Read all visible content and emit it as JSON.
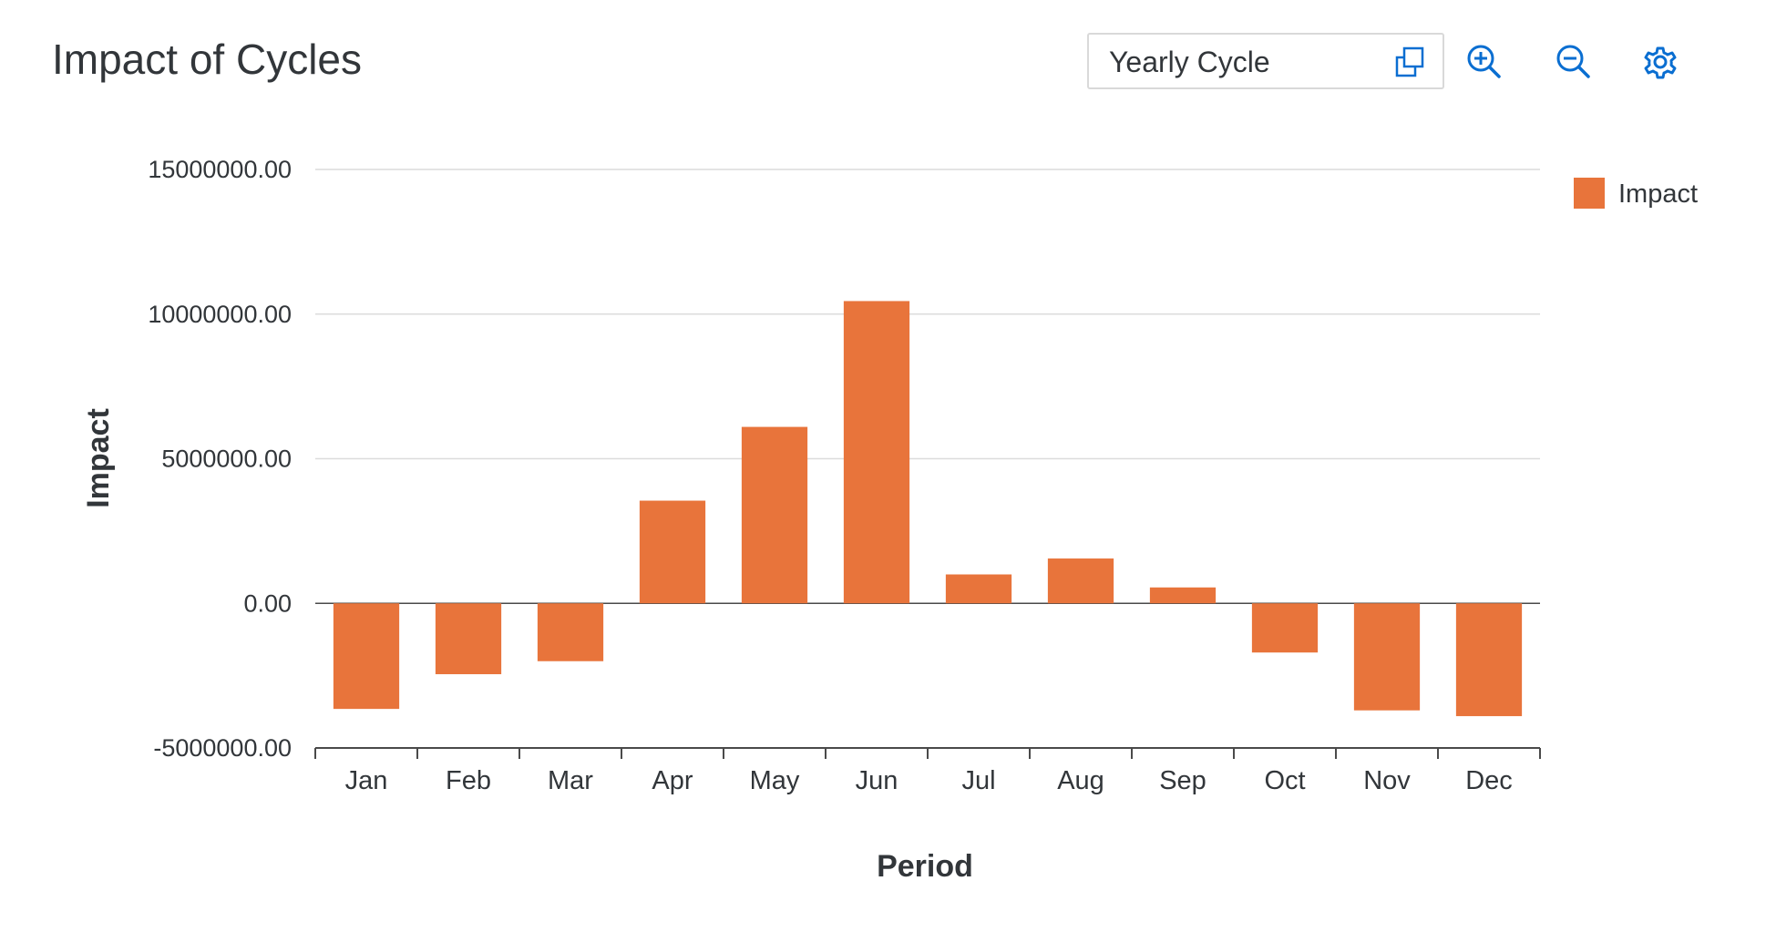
{
  "header": {
    "title": "Impact of Cycles",
    "cycle_select_value": "Yearly Cycle"
  },
  "toolbar": {
    "select_icon": "popup-icon",
    "zoom_in_icon": "zoom-in-icon",
    "zoom_out_icon": "zoom-out-icon",
    "settings_icon": "settings-icon"
  },
  "colors": {
    "bar": "#e8743b",
    "grid": "#dcdcdc",
    "axis": "#4a4a4a",
    "text": "#32363a"
  },
  "chart_data": {
    "type": "bar",
    "title": "",
    "xlabel": "Period",
    "ylabel": "Impact",
    "categories": [
      "Jan",
      "Feb",
      "Mar",
      "Apr",
      "May",
      "Jun",
      "Jul",
      "Aug",
      "Sep",
      "Oct",
      "Nov",
      "Dec"
    ],
    "series": [
      {
        "name": "Impact",
        "values": [
          -3650000,
          -2450000,
          -2000000,
          3550000,
          6100000,
          10450000,
          1000000,
          1550000,
          550000,
          -1700000,
          -3700000,
          -3900000
        ]
      }
    ],
    "ylim": [
      -5000000,
      15000000
    ],
    "yticks": [
      -5000000,
      0,
      5000000,
      10000000,
      15000000
    ],
    "ytick_labels": [
      "-5000000.00",
      "0.00",
      "5000000.00",
      "10000000.00",
      "15000000.00"
    ],
    "grid": true,
    "legend_position": "top-right"
  }
}
